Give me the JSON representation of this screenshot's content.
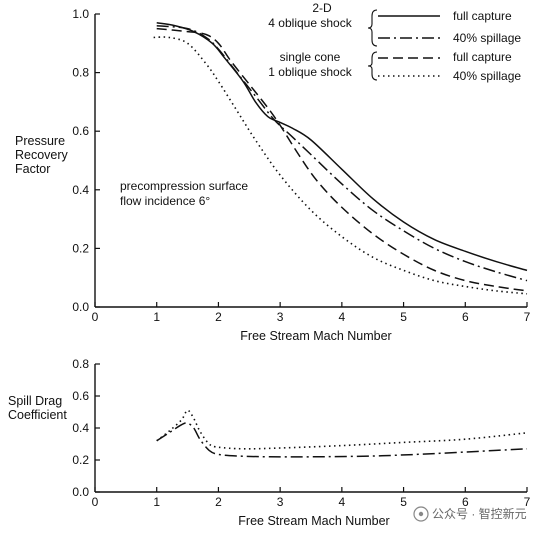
{
  "chart_data": [
    {
      "type": "line",
      "xlabel": "Free Stream Mach Number",
      "ylabel": [
        "Pressure",
        "Recovery",
        "Factor"
      ],
      "xlim": [
        0,
        7
      ],
      "ylim": [
        0,
        1.0
      ],
      "xticks": [
        "0",
        "1",
        "2",
        "3",
        "4",
        "5",
        "6",
        "7"
      ],
      "yticks": [
        "0.0",
        "0.2",
        "0.4",
        "0.6",
        "0.8",
        "1.0"
      ],
      "grid": false,
      "annotation": [
        "precompression surface",
        "flow incidence  6°"
      ],
      "legend_placement": "top-right",
      "legend_groups": [
        {
          "title": [
            "2-D",
            "4 oblique shock"
          ],
          "entries": [
            "full capture",
            "40% spillage"
          ]
        },
        {
          "title": [
            "single cone",
            "1 oblique shock"
          ],
          "entries": [
            "full capture",
            "40% spillage"
          ]
        }
      ],
      "series": [
        {
          "name": "full capture",
          "group": "2-D 4 oblique shock",
          "style": "solid",
          "x": [
            1.0,
            1.3,
            1.6,
            1.9,
            2.1,
            2.4,
            2.6,
            2.8,
            3.0,
            3.2,
            3.5,
            4.0,
            4.5,
            5.0,
            5.5,
            6.0,
            6.5,
            7.0
          ],
          "y": [
            0.97,
            0.96,
            0.94,
            0.9,
            0.85,
            0.77,
            0.7,
            0.65,
            0.63,
            0.61,
            0.57,
            0.47,
            0.37,
            0.29,
            0.23,
            0.19,
            0.155,
            0.125
          ]
        },
        {
          "name": "40% spillage",
          "group": "2-D 4 oblique shock",
          "style": "dashdot",
          "x": [
            1.0,
            1.5,
            1.8,
            2.0,
            2.3,
            2.6,
            2.9,
            3.2,
            3.5,
            4.0,
            4.5,
            5.0,
            5.5,
            6.0,
            6.5,
            7.0
          ],
          "y": [
            0.96,
            0.95,
            0.92,
            0.88,
            0.8,
            0.72,
            0.64,
            0.58,
            0.52,
            0.42,
            0.33,
            0.26,
            0.2,
            0.155,
            0.12,
            0.09
          ]
        },
        {
          "name": "full capture",
          "group": "single cone 1 oblique shock",
          "style": "dashed",
          "x": [
            1.0,
            1.5,
            1.8,
            2.0,
            2.2,
            2.5,
            2.8,
            3.0,
            3.3,
            3.6,
            4.0,
            4.5,
            5.0,
            5.5,
            6.0,
            6.5,
            7.0
          ],
          "y": [
            0.95,
            0.94,
            0.93,
            0.9,
            0.84,
            0.76,
            0.68,
            0.62,
            0.52,
            0.43,
            0.34,
            0.25,
            0.18,
            0.125,
            0.09,
            0.07,
            0.055
          ]
        },
        {
          "name": "40% spillage",
          "group": "single cone 1 oblique shock",
          "style": "dotted",
          "x": [
            0.95,
            1.2,
            1.5,
            1.8,
            2.0,
            2.3,
            2.6,
            3.0,
            3.5,
            4.0,
            4.5,
            5.0,
            5.5,
            6.0,
            6.5,
            7.0
          ],
          "y": [
            0.92,
            0.92,
            0.9,
            0.83,
            0.77,
            0.67,
            0.57,
            0.45,
            0.33,
            0.24,
            0.17,
            0.125,
            0.09,
            0.07,
            0.055,
            0.045
          ]
        }
      ]
    },
    {
      "type": "line",
      "xlabel": "Free Stream Mach Number",
      "ylabel": [
        "Spill Drag",
        "Coefficient"
      ],
      "xlim": [
        0,
        7
      ],
      "ylim": [
        0,
        0.8
      ],
      "xticks": [
        "0",
        "1",
        "2",
        "3",
        "4",
        "5",
        "6",
        "7"
      ],
      "yticks": [
        "0.0",
        "0.2",
        "0.4",
        "0.6",
        "0.8"
      ],
      "grid": false,
      "series": [
        {
          "style": "dashdot",
          "x": [
            1.0,
            1.2,
            1.4,
            1.5,
            1.6,
            1.7,
            1.85,
            2.0,
            2.3,
            2.8,
            3.5,
            4.5,
            5.5,
            6.5,
            7.0
          ],
          "y": [
            0.32,
            0.37,
            0.42,
            0.43,
            0.4,
            0.33,
            0.26,
            0.235,
            0.225,
            0.22,
            0.22,
            0.225,
            0.24,
            0.26,
            0.27
          ]
        },
        {
          "style": "dotted",
          "x": [
            1.0,
            1.2,
            1.4,
            1.5,
            1.6,
            1.7,
            1.85,
            2.0,
            2.4,
            3.0,
            4.0,
            5.0,
            6.0,
            7.0
          ],
          "y": [
            0.32,
            0.38,
            0.45,
            0.51,
            0.46,
            0.38,
            0.3,
            0.28,
            0.27,
            0.275,
            0.29,
            0.31,
            0.33,
            0.37
          ]
        }
      ]
    }
  ],
  "watermark": "公众号 · 智控新元"
}
